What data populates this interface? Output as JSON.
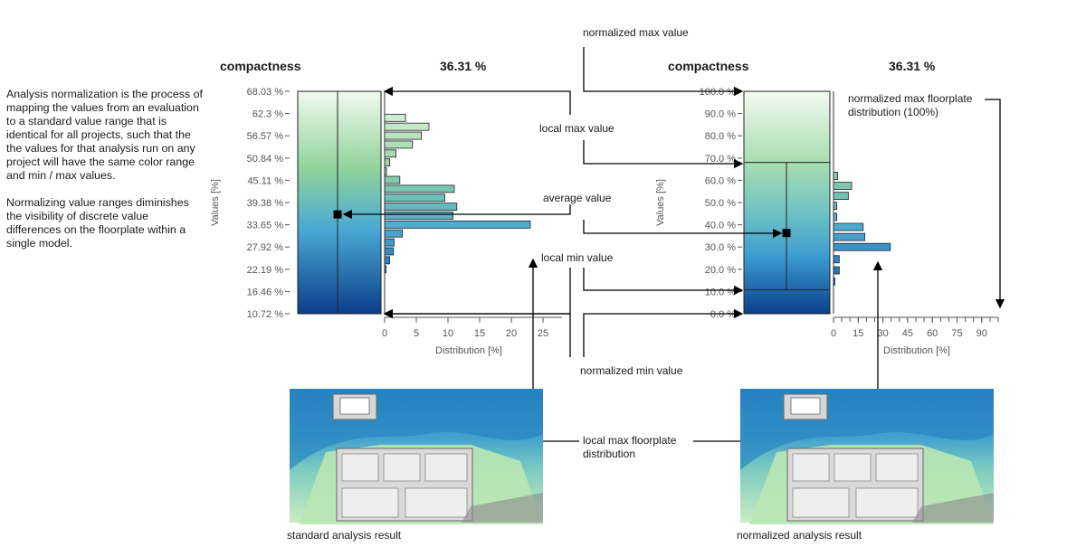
{
  "description": {
    "para1": "Analysis normalization is the process of mapping the values from an evaluation to a standard value range that is identical for all projects, such that the the values for that analysis run on any project will have the same color range and min / max values.",
    "para2": "Normalizing value ranges diminishes the visibility of discrete value differences on the floorplate within a single model."
  },
  "left_panel": {
    "metric": "compactness",
    "value": "36.31 %",
    "plan_caption": "standard analysis result"
  },
  "right_panel": {
    "metric": "compactness",
    "value": "36.31 %",
    "plan_caption": "normalized analysis result"
  },
  "annotations": {
    "normalized_max": "normalized max value",
    "local_max": "local max value",
    "average": "average value",
    "local_min": "local min value",
    "normalized_min": "normalized min value",
    "normalized_max_floorplate": "normalized max floorplate distribution (100%)",
    "local_max_floorplate": "local max floorplate distribution"
  },
  "colors": {
    "grad_top": "#f2f9f0",
    "grad_mid_green": "#8fd39a",
    "grad_mid_blue": "#4aa9d4",
    "grad_bottom": "#0b3e8a",
    "arrow": "#000000"
  },
  "chart_data": [
    {
      "type": "bar",
      "orientation": "horizontal",
      "ylabel": "Values [%]",
      "xlabel": "Distribution [%]",
      "ytick_labels": [
        "68.03 %",
        "62.3 %",
        "56.57 %",
        "50.84 %",
        "45.11 %",
        "39.38 %",
        "33.65 %",
        "27.92 %",
        "22.19 %",
        "16.46 %",
        "10.72 %"
      ],
      "xticks": [
        0,
        5,
        10,
        15,
        20,
        25
      ],
      "xlim": [
        0,
        28
      ],
      "ylim": [
        10.72,
        68.03
      ],
      "average": 36.31,
      "bars": [
        {
          "y": 61.2,
          "value": 3.3
        },
        {
          "y": 58.9,
          "value": 7.0
        },
        {
          "y": 56.6,
          "value": 5.8
        },
        {
          "y": 54.3,
          "value": 4.4
        },
        {
          "y": 52.0,
          "value": 1.8
        },
        {
          "y": 49.7,
          "value": 0.8
        },
        {
          "y": 47.4,
          "value": 0.3
        },
        {
          "y": 45.2,
          "value": 2.4
        },
        {
          "y": 42.9,
          "value": 11.0
        },
        {
          "y": 40.6,
          "value": 9.5
        },
        {
          "y": 38.3,
          "value": 11.4
        },
        {
          "y": 36.0,
          "value": 10.8
        },
        {
          "y": 33.7,
          "value": 23.0
        },
        {
          "y": 31.4,
          "value": 2.8
        },
        {
          "y": 29.1,
          "value": 1.5
        },
        {
          "y": 26.8,
          "value": 1.4
        },
        {
          "y": 24.5,
          "value": 0.8
        },
        {
          "y": 22.2,
          "value": 0.2
        }
      ]
    },
    {
      "type": "bar",
      "orientation": "horizontal",
      "ylabel": "Values [%]",
      "xlabel": "Distribution [%]",
      "ytick_labels": [
        "100.0 %",
        "90.0 %",
        "80.0 %",
        "70.0 %",
        "60.0 %",
        "50.0 %",
        "40.0 %",
        "30.0 %",
        "20.0 %",
        "10.0 %",
        "0.0 %"
      ],
      "xticks": [
        0,
        15,
        30,
        45,
        60,
        75,
        90
      ],
      "xlim": [
        0,
        100
      ],
      "ylim": [
        0,
        100
      ],
      "average": 36.31,
      "local_range": [
        10.72,
        68.03
      ],
      "bars": [
        {
          "y": 62.0,
          "value": 2.5
        },
        {
          "y": 57.5,
          "value": 11.0
        },
        {
          "y": 53.0,
          "value": 9.0
        },
        {
          "y": 48.5,
          "value": 2.0
        },
        {
          "y": 43.5,
          "value": 2.0
        },
        {
          "y": 39.0,
          "value": 18.0
        },
        {
          "y": 34.5,
          "value": 19.0
        },
        {
          "y": 30.0,
          "value": 34.5
        },
        {
          "y": 24.5,
          "value": 3.5
        },
        {
          "y": 19.5,
          "value": 3.5
        },
        {
          "y": 14.5,
          "value": 0.5
        }
      ]
    }
  ]
}
